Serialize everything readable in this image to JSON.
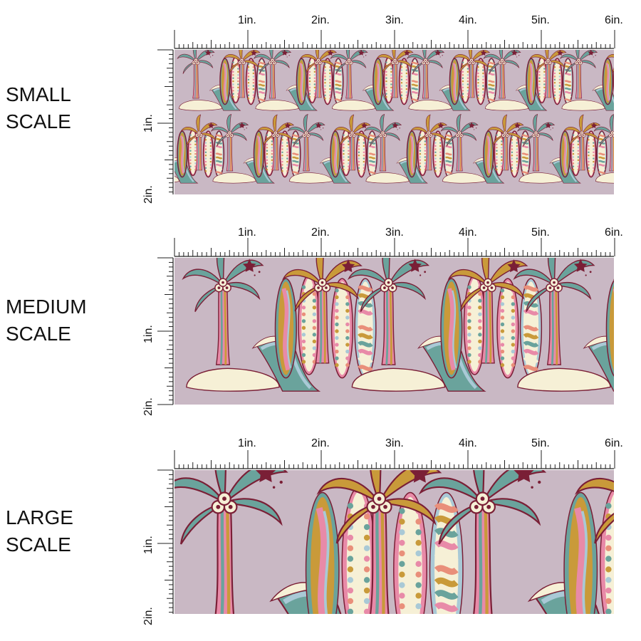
{
  "scales": [
    {
      "label_line1": "SMALL",
      "label_line2": "SCALE"
    },
    {
      "label_line1": "MEDIUM",
      "label_line2": "SCALE"
    },
    {
      "label_line1": "LARGE",
      "label_line2": "SCALE"
    }
  ],
  "ruler": {
    "top_marks": [
      "1in.",
      "2in.",
      "3in.",
      "4in.",
      "5in.",
      "6in."
    ],
    "side_marks": [
      "1in.",
      "2in."
    ]
  },
  "colors": {
    "background": "#c9b8c4",
    "teal": "#6aa39c",
    "mustard": "#c99a3a",
    "pink": "#e88aa8",
    "cream": "#f6f0d6",
    "wine": "#7a1f36",
    "salmon": "#e98f7a",
    "lightblue": "#a9c9d6"
  },
  "icons": [
    "palm-tree-icon",
    "surfboard-icon",
    "wave-icon",
    "island-icon",
    "star-icon"
  ]
}
